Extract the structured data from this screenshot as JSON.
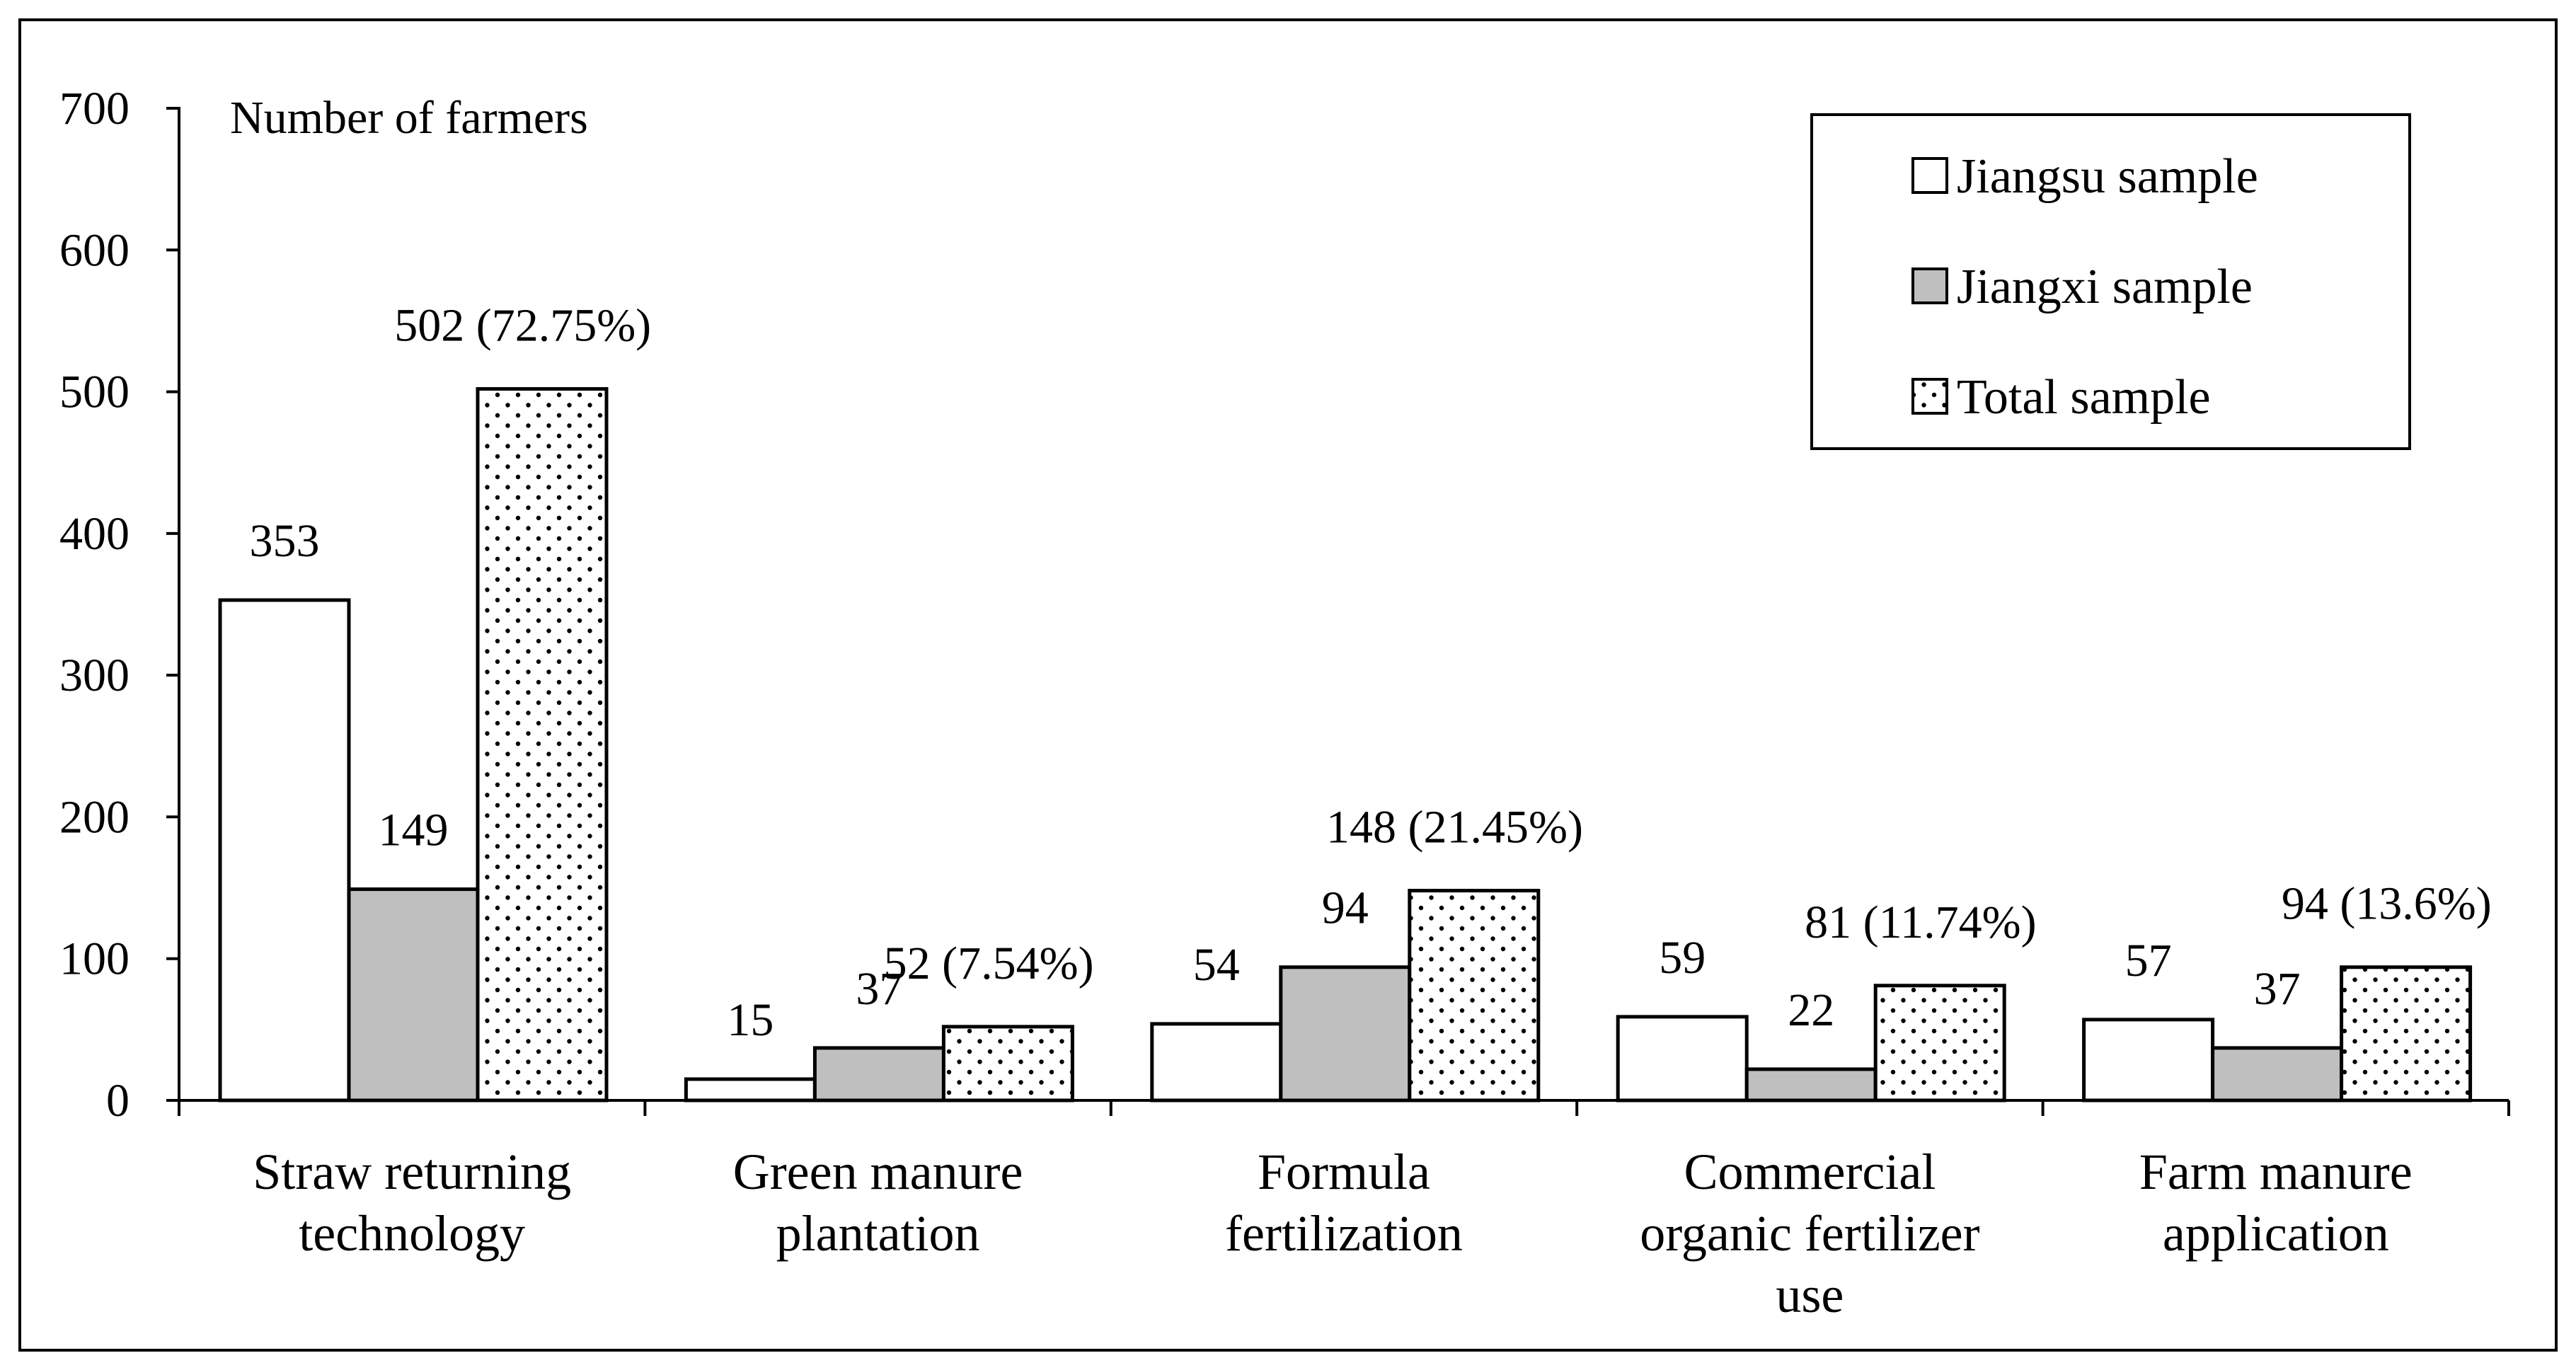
{
  "chart_data": {
    "type": "bar",
    "title": "",
    "ylabel": "Number of farmers",
    "xlabel": "",
    "ylim": [
      0,
      700
    ],
    "yticks": [
      0,
      100,
      200,
      300,
      400,
      500,
      600,
      700
    ],
    "grid": false,
    "legend_position": "top-right",
    "categories": [
      [
        "Straw returning",
        "technology"
      ],
      [
        "Green manure",
        "plantation"
      ],
      [
        "Formula",
        "fertilization"
      ],
      [
        "Commercial",
        "organic fertilizer",
        "use"
      ],
      [
        "Farm manure",
        "application"
      ]
    ],
    "series": [
      {
        "name": "Jiangsu sample",
        "fill": "#ffffff",
        "pattern": "none",
        "values": [
          353,
          15,
          54,
          59,
          57
        ],
        "labels": [
          "353",
          "15",
          "54",
          "59",
          "57"
        ]
      },
      {
        "name": "Jiangxi sample",
        "fill": "#bfbfbf",
        "pattern": "none",
        "values": [
          149,
          37,
          94,
          22,
          37
        ],
        "labels": [
          "149",
          "37",
          "94",
          "22",
          "37"
        ]
      },
      {
        "name": "Total sample",
        "fill": "#ffffff",
        "pattern": "dots",
        "values": [
          502,
          52,
          148,
          81,
          94
        ],
        "labels": [
          "502 (72.75%)",
          "52 (7.54%)",
          "148 (21.45%)",
          "81 (11.74%)",
          "94 (13.6%)"
        ]
      }
    ]
  }
}
